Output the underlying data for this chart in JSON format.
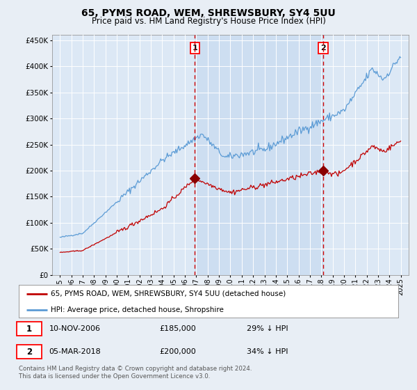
{
  "title": "65, PYMS ROAD, WEM, SHREWSBURY, SY4 5UU",
  "subtitle": "Price paid vs. HM Land Registry's House Price Index (HPI)",
  "background_color": "#e8eef5",
  "plot_bg_color": "#dce8f5",
  "shade_color": "#c8daf0",
  "ylim": [
    0,
    460000
  ],
  "yticks": [
    0,
    50000,
    100000,
    150000,
    200000,
    250000,
    300000,
    350000,
    400000,
    450000
  ],
  "sale1_year": 2006.87,
  "sale1_price": 185000,
  "sale2_year": 2018.18,
  "sale2_price": 200000,
  "legend_line1": "65, PYMS ROAD, WEM, SHREWSBURY, SY4 5UU (detached house)",
  "legend_line2": "HPI: Average price, detached house, Shropshire",
  "note1_date": "10-NOV-2006",
  "note1_price": "£185,000",
  "note1_hpi": "29% ↓ HPI",
  "note2_date": "05-MAR-2018",
  "note2_price": "£200,000",
  "note2_hpi": "34% ↓ HPI",
  "footer": "Contains HM Land Registry data © Crown copyright and database right 2024.\nThis data is licensed under the Open Government Licence v3.0.",
  "hpi_color": "#5b9bd5",
  "sale_color": "#c00000",
  "vline_color": "#cc0000",
  "marker_color": "#8b0000"
}
